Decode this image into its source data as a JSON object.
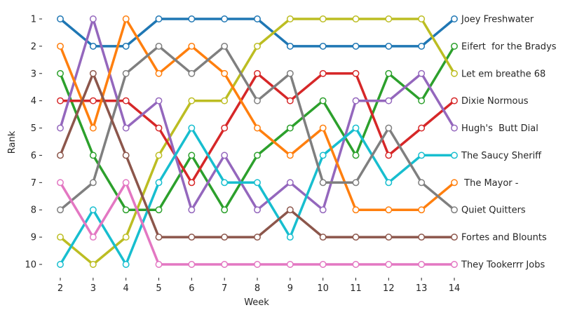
{
  "chart_data": {
    "type": "line",
    "title": "",
    "xlabel": "Week",
    "ylabel": "Rank",
    "x": [
      2,
      3,
      4,
      5,
      6,
      7,
      8,
      9,
      10,
      11,
      12,
      13,
      14
    ],
    "xticks": [
      "2",
      "3",
      "4",
      "5",
      "6",
      "7",
      "8",
      "9",
      "10",
      "11",
      "12",
      "13",
      "14"
    ],
    "yticks": [
      "1",
      "2",
      "3",
      "4",
      "5",
      "6",
      "7",
      "8",
      "9",
      "10"
    ],
    "xlim": [
      2,
      14
    ],
    "ylim": [
      10,
      1
    ],
    "y_inverted": true,
    "grid": false,
    "legend": "end-of-line labels, right",
    "series": [
      {
        "name": "Joey Freshwater",
        "color": "#1f77b4",
        "values": [
          1,
          2,
          2,
          1,
          1,
          1,
          1,
          2,
          2,
          2,
          2,
          2,
          1
        ]
      },
      {
        "name": "Eifert  for the Bradys",
        "color": "#2ca02c",
        "values": [
          3,
          6,
          8,
          8,
          6,
          8,
          6,
          5,
          4,
          6,
          3,
          4,
          2
        ]
      },
      {
        "name": "Let em breathe 68",
        "color": "#bcbd22",
        "values": [
          9,
          10,
          9,
          6,
          4,
          4,
          2,
          1,
          1,
          1,
          1,
          1,
          3
        ]
      },
      {
        "name": "Dixie Normous",
        "color": "#d62728",
        "values": [
          4,
          4,
          4,
          5,
          7,
          5,
          3,
          4,
          3,
          3,
          6,
          5,
          4
        ]
      },
      {
        "name": "Hugh's  Butt Dial",
        "color": "#9467bd",
        "values": [
          5,
          1,
          5,
          4,
          8,
          6,
          8,
          7,
          8,
          4,
          4,
          3,
          5
        ]
      },
      {
        "name": "The Saucy Sheriff",
        "color": "#17becf",
        "values": [
          10,
          8,
          10,
          7,
          5,
          7,
          7,
          9,
          6,
          5,
          7,
          6,
          6
        ]
      },
      {
        "name": " The Mayor -",
        "color": "#ff7f0e",
        "values": [
          2,
          5,
          1,
          3,
          2,
          3,
          5,
          6,
          5,
          8,
          8,
          8,
          7
        ]
      },
      {
        "name": "Quiet Quitters",
        "color": "#7f7f7f",
        "values": [
          8,
          7,
          3,
          2,
          3,
          2,
          4,
          3,
          7,
          7,
          5,
          7,
          8
        ]
      },
      {
        "name": "Fortes and Blounts",
        "color": "#8c564b",
        "values": [
          6,
          3,
          6,
          9,
          9,
          9,
          9,
          8,
          9,
          9,
          9,
          9,
          9
        ]
      },
      {
        "name": "They Tookerrr Jobs",
        "color": "#e377c2",
        "values": [
          7,
          9,
          7,
          10,
          10,
          10,
          10,
          10,
          10,
          10,
          10,
          10,
          10
        ]
      }
    ]
  }
}
